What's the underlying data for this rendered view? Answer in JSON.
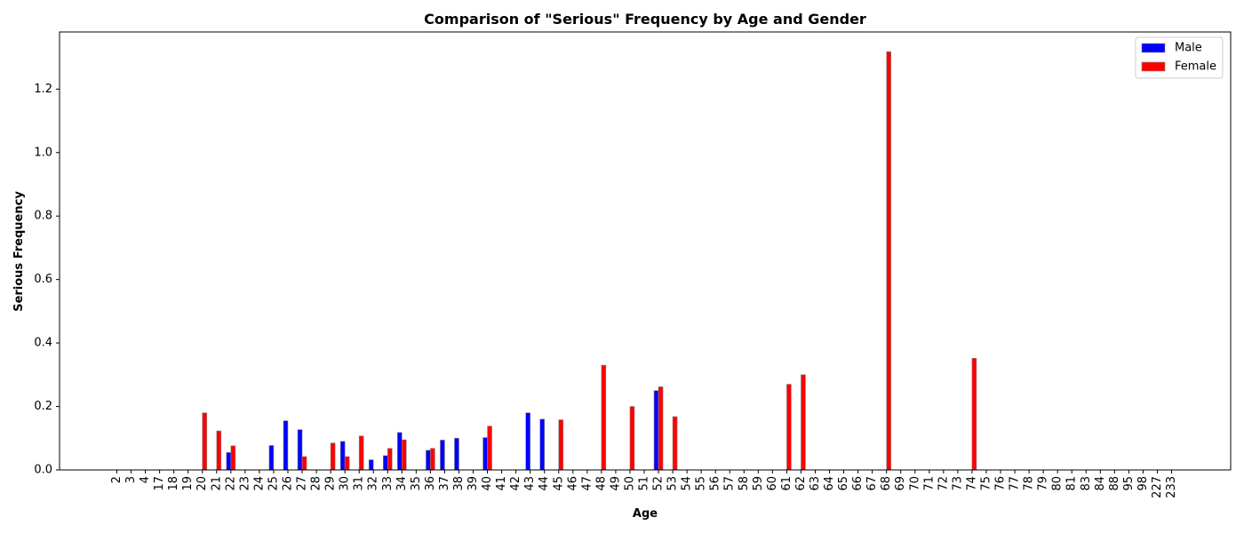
{
  "chart_data": {
    "type": "bar",
    "title": "Comparison of \"Serious\" Frequency by Age and Gender",
    "xlabel": "Age",
    "ylabel": "Serious Frequency",
    "ylim": [
      0,
      1.38
    ],
    "yticks": [
      "0.0",
      "0.2",
      "0.4",
      "0.6",
      "0.8",
      "1.0",
      "1.2"
    ],
    "grid": false,
    "legend_position": "top-right",
    "categories": [
      "2",
      "3",
      "4",
      "17",
      "18",
      "19",
      "20",
      "21",
      "22",
      "23",
      "24",
      "25",
      "26",
      "27",
      "28",
      "29",
      "30",
      "31",
      "32",
      "33",
      "34",
      "35",
      "36",
      "37",
      "38",
      "39",
      "40",
      "41",
      "42",
      "43",
      "44",
      "45",
      "46",
      "47",
      "48",
      "49",
      "50",
      "51",
      "52",
      "53",
      "54",
      "55",
      "56",
      "57",
      "58",
      "59",
      "60",
      "61",
      "62",
      "63",
      "64",
      "65",
      "66",
      "67",
      "68",
      "69",
      "70",
      "71",
      "72",
      "73",
      "74",
      "75",
      "76",
      "77",
      "78",
      "79",
      "80",
      "81",
      "83",
      "84",
      "88",
      "95",
      "98",
      "227",
      "233"
    ],
    "series": [
      {
        "name": "Male",
        "color": "#0000ff",
        "values": [
          0,
          0,
          0,
          0,
          0,
          0,
          0,
          0,
          0.055,
          0,
          0,
          0.077,
          0.155,
          0.127,
          0,
          0,
          0.09,
          0,
          0.032,
          0.045,
          0.118,
          0,
          0.062,
          0.094,
          0.1,
          0,
          0.102,
          0,
          0,
          0.18,
          0.16,
          0,
          0,
          0,
          0,
          0,
          0,
          0,
          0.25,
          0,
          0,
          0,
          0,
          0,
          0,
          0,
          0,
          0,
          0,
          0,
          0,
          0,
          0,
          0,
          0,
          0,
          0,
          0,
          0,
          0,
          0,
          0,
          0,
          0,
          0,
          0,
          0,
          0,
          0,
          0,
          0,
          0,
          0,
          0,
          0
        ]
      },
      {
        "name": "Female",
        "color": "#ff0000",
        "values": [
          0,
          0,
          0,
          0,
          0,
          0,
          0.18,
          0.123,
          0.076,
          0,
          0,
          0,
          0,
          0.042,
          0,
          0.085,
          0.042,
          0.107,
          0,
          0.068,
          0.095,
          0,
          0.068,
          0,
          0,
          0,
          0.138,
          0,
          0,
          0,
          0,
          0.158,
          0,
          0,
          0.33,
          0,
          0.2,
          0,
          0.262,
          0.168,
          0,
          0,
          0,
          0,
          0,
          0,
          0,
          0.27,
          0.3,
          0,
          0,
          0,
          0,
          0,
          1.318,
          0,
          0,
          0,
          0,
          0,
          0.352,
          0,
          0,
          0,
          0,
          0,
          0,
          0,
          0,
          0,
          0,
          0,
          0,
          0,
          0
        ]
      }
    ]
  }
}
